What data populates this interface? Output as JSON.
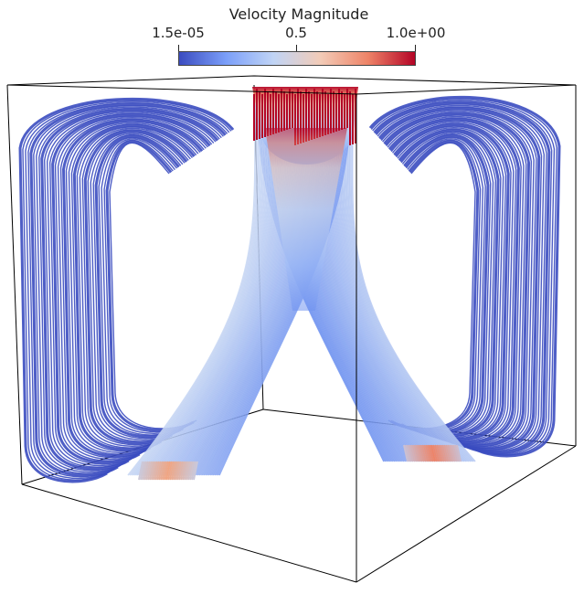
{
  "colorbar": {
    "title": "Velocity Magnitude",
    "min_label": "1.5e-05",
    "mid_label": "0.5",
    "max_label": "1.0e+00",
    "colors": [
      "#3b4cc0",
      "#7b9ff9",
      "#c0d4f5",
      "#f2cbb7",
      "#ee8468",
      "#b40426"
    ]
  },
  "scene": {
    "name": "streamlines-in-cube",
    "box_color": "#000000",
    "low_color": "#3b4cc0",
    "high_color": "#b40426"
  }
}
